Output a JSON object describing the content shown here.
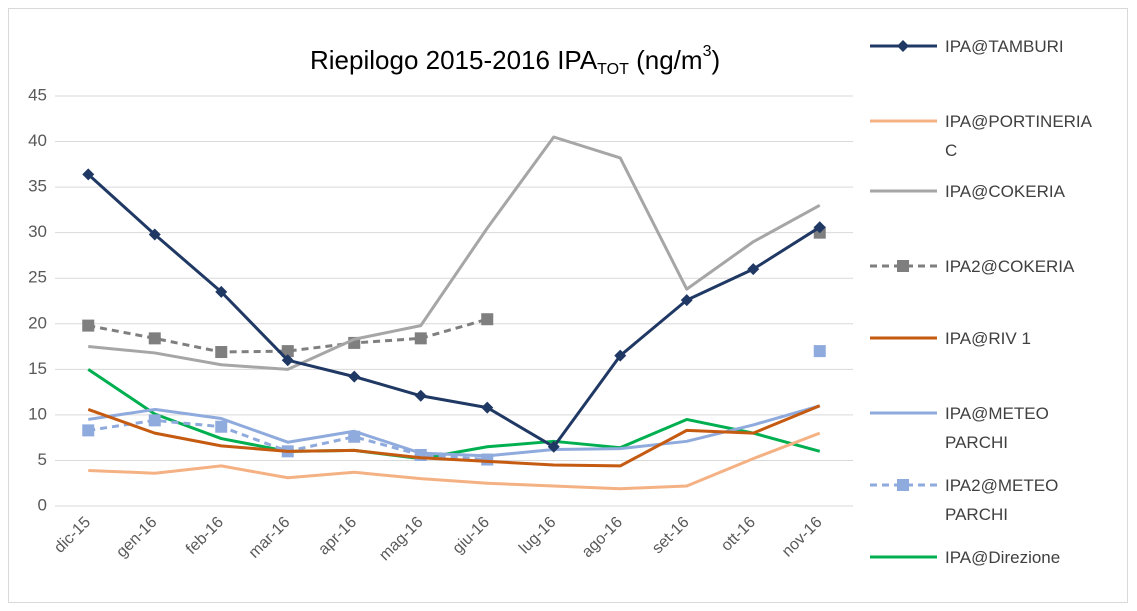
{
  "chart_data": {
    "type": "line",
    "title": [
      "Riepilogo 2015-2016 IPA",
      "TOT",
      " (ng/m",
      "3",
      ")"
    ],
    "categories": [
      "dic-15",
      "gen-16",
      "feb-16",
      "mar-16",
      "apr-16",
      "mag-16",
      "giu-16",
      "lug-16",
      "ago-16",
      "set-16",
      "ott-16",
      "nov-16"
    ],
    "ylim": [
      0,
      45
    ],
    "yticks": [
      0,
      5,
      10,
      15,
      20,
      25,
      30,
      35,
      40,
      45
    ],
    "grid": true,
    "legend": "right",
    "series": [
      {
        "name": "IPA@TAMBURI",
        "color": "#203864",
        "marker": "diamond",
        "dash": false,
        "values": [
          36.4,
          29.8,
          23.5,
          16,
          14.2,
          12.1,
          10.8,
          6.5,
          16.5,
          22.6,
          26,
          30.6
        ]
      },
      {
        "name": "IPA@PORTINERIA C",
        "color": "#f4b183",
        "marker": null,
        "dash": false,
        "values": [
          3.9,
          3.6,
          4.4,
          3.1,
          3.7,
          3.0,
          2.5,
          2.2,
          1.9,
          2.2,
          5.2,
          8.0
        ]
      },
      {
        "name": "IPA@COKERIA",
        "color": "#a6a6a6",
        "marker": null,
        "dash": false,
        "values": [
          17.5,
          16.8,
          15.5,
          15,
          18.3,
          19.8,
          30.5,
          40.5,
          38.2,
          23.8,
          29,
          33
        ]
      },
      {
        "name": "IPA2@COKERIA",
        "color": "#7f7f7f",
        "marker": "square",
        "dash": true,
        "values": [
          19.8,
          18.4,
          16.9,
          17,
          17.9,
          18.4,
          20.5,
          null,
          null,
          null,
          null,
          30
        ]
      },
      {
        "name": "IPA@RIV 1",
        "color": "#c55a11",
        "marker": null,
        "dash": false,
        "values": [
          10.6,
          8.0,
          6.6,
          6.0,
          6.1,
          5.3,
          4.9,
          4.5,
          4.4,
          8.3,
          8.0,
          11.0
        ]
      },
      {
        "name": "IPA@METEO PARCHI",
        "color": "#8faadc",
        "marker": null,
        "dash": false,
        "values": [
          9.5,
          10.6,
          9.6,
          7.0,
          8.2,
          5.8,
          5.5,
          6.2,
          6.3,
          7.1,
          8.9,
          11.0
        ]
      },
      {
        "name": "IPA2@METEO PARCHI",
        "color": "#8faadc",
        "marker": "square",
        "dash": true,
        "values": [
          8.3,
          9.4,
          8.7,
          6.0,
          7.6,
          5.6,
          5.1,
          null,
          null,
          null,
          null,
          17.0
        ]
      },
      {
        "name": "IPA@Direzione",
        "color": "#00b050",
        "marker": null,
        "dash": false,
        "values": [
          15.0,
          10.1,
          7.4,
          6.0,
          6.1,
          5.2,
          6.5,
          7.1,
          6.4,
          9.5,
          8.0,
          6.0
        ]
      }
    ]
  }
}
